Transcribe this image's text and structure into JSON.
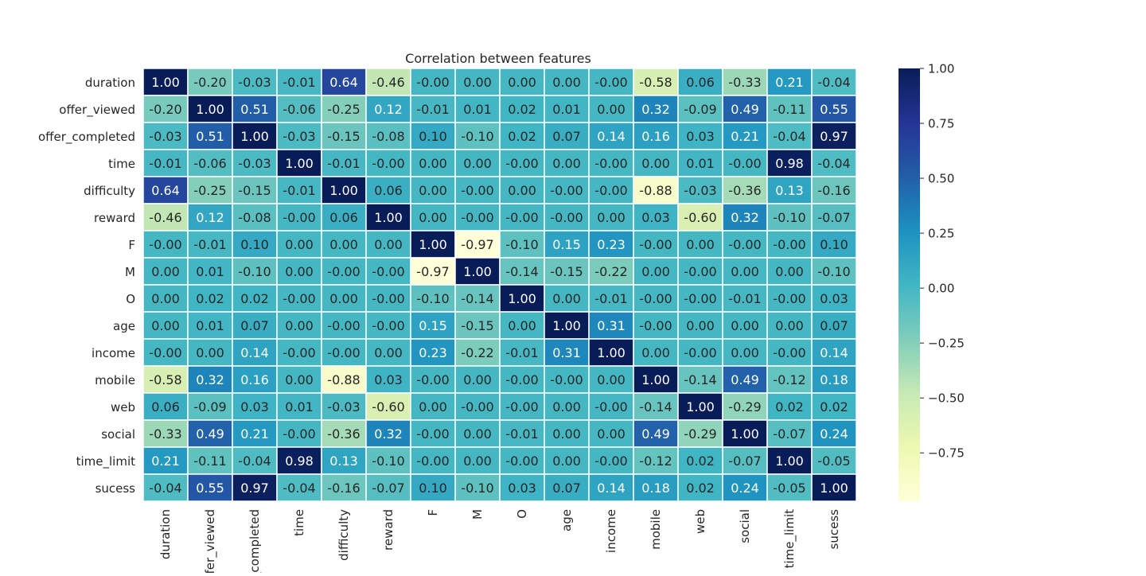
{
  "chart_data": {
    "type": "heatmap",
    "title": "Correlation between features",
    "row_labels": [
      "duration",
      "offer_viewed",
      "offer_completed",
      "time",
      "difficulty",
      "reward",
      "F",
      "M",
      "O",
      "age",
      "income",
      "mobile",
      "web",
      "social",
      "time_limit",
      "sucess"
    ],
    "col_labels": [
      "duration",
      "offer_viewed",
      "offer_completed",
      "time",
      "difficulty",
      "reward",
      "F",
      "M",
      "O",
      "age",
      "income",
      "mobile",
      "web",
      "social",
      "time_limit",
      "sucess"
    ],
    "col_labels_display": [
      "duration",
      "fer_viewed",
      "_completed",
      "time",
      "difficulty",
      "reward",
      "F",
      "M",
      "O",
      "age",
      "income",
      "mobile",
      "web",
      "social",
      "time_limit",
      "sucess"
    ],
    "values": [
      [
        "1.00",
        "-0.20",
        "-0.03",
        "-0.01",
        "0.64",
        "-0.46",
        "-0.00",
        "0.00",
        "0.00",
        "0.00",
        "-0.00",
        "-0.58",
        "0.06",
        "-0.33",
        "0.21",
        "-0.04"
      ],
      [
        "-0.20",
        "1.00",
        "0.51",
        "-0.06",
        "-0.25",
        "0.12",
        "-0.01",
        "0.01",
        "0.02",
        "0.01",
        "0.00",
        "0.32",
        "-0.09",
        "0.49",
        "-0.11",
        "0.55"
      ],
      [
        "-0.03",
        "0.51",
        "1.00",
        "-0.03",
        "-0.15",
        "-0.08",
        "0.10",
        "-0.10",
        "0.02",
        "0.07",
        "0.14",
        "0.16",
        "0.03",
        "0.21",
        "-0.04",
        "0.97"
      ],
      [
        "-0.01",
        "-0.06",
        "-0.03",
        "1.00",
        "-0.01",
        "-0.00",
        "0.00",
        "0.00",
        "-0.00",
        "0.00",
        "-0.00",
        "0.00",
        "0.01",
        "-0.00",
        "0.98",
        "-0.04"
      ],
      [
        "0.64",
        "-0.25",
        "-0.15",
        "-0.01",
        "1.00",
        "0.06",
        "0.00",
        "-0.00",
        "0.00",
        "-0.00",
        "-0.00",
        "-0.88",
        "-0.03",
        "-0.36",
        "0.13",
        "-0.16"
      ],
      [
        "-0.46",
        "0.12",
        "-0.08",
        "-0.00",
        "0.06",
        "1.00",
        "0.00",
        "-0.00",
        "-0.00",
        "-0.00",
        "0.00",
        "0.03",
        "-0.60",
        "0.32",
        "-0.10",
        "-0.07"
      ],
      [
        "-0.00",
        "-0.01",
        "0.10",
        "0.00",
        "0.00",
        "0.00",
        "1.00",
        "-0.97",
        "-0.10",
        "0.15",
        "0.23",
        "-0.00",
        "0.00",
        "-0.00",
        "-0.00",
        "0.10"
      ],
      [
        "0.00",
        "0.01",
        "-0.10",
        "0.00",
        "-0.00",
        "-0.00",
        "-0.97",
        "1.00",
        "-0.14",
        "-0.15",
        "-0.22",
        "0.00",
        "-0.00",
        "0.00",
        "0.00",
        "-0.10"
      ],
      [
        "0.00",
        "0.02",
        "0.02",
        "-0.00",
        "0.00",
        "-0.00",
        "-0.10",
        "-0.14",
        "1.00",
        "0.00",
        "-0.01",
        "-0.00",
        "-0.00",
        "-0.01",
        "-0.00",
        "0.03"
      ],
      [
        "0.00",
        "0.01",
        "0.07",
        "0.00",
        "-0.00",
        "-0.00",
        "0.15",
        "-0.15",
        "0.00",
        "1.00",
        "0.31",
        "-0.00",
        "0.00",
        "0.00",
        "0.00",
        "0.07"
      ],
      [
        "-0.00",
        "0.00",
        "0.14",
        "-0.00",
        "-0.00",
        "0.00",
        "0.23",
        "-0.22",
        "-0.01",
        "0.31",
        "1.00",
        "0.00",
        "-0.00",
        "0.00",
        "-0.00",
        "0.14"
      ],
      [
        "-0.58",
        "0.32",
        "0.16",
        "0.00",
        "-0.88",
        "0.03",
        "-0.00",
        "0.00",
        "-0.00",
        "-0.00",
        "0.00",
        "1.00",
        "-0.14",
        "0.49",
        "-0.12",
        "0.18"
      ],
      [
        "0.06",
        "-0.09",
        "0.03",
        "0.01",
        "-0.03",
        "-0.60",
        "0.00",
        "-0.00",
        "-0.00",
        "0.00",
        "-0.00",
        "-0.14",
        "1.00",
        "-0.29",
        "0.02",
        "0.02"
      ],
      [
        "-0.33",
        "0.49",
        "0.21",
        "-0.00",
        "-0.36",
        "0.32",
        "-0.00",
        "0.00",
        "-0.01",
        "0.00",
        "0.00",
        "0.49",
        "-0.29",
        "1.00",
        "-0.07",
        "0.24"
      ],
      [
        "0.21",
        "-0.11",
        "-0.04",
        "0.98",
        "0.13",
        "-0.10",
        "-0.00",
        "0.00",
        "-0.00",
        "0.00",
        "-0.00",
        "-0.12",
        "0.02",
        "-0.07",
        "1.00",
        "-0.05"
      ],
      [
        "-0.04",
        "0.55",
        "0.97",
        "-0.04",
        "-0.16",
        "-0.07",
        "0.10",
        "-0.10",
        "0.03",
        "0.07",
        "0.14",
        "0.18",
        "0.02",
        "0.24",
        "-0.05",
        "1.00"
      ]
    ],
    "colormap": "YlGnBu",
    "colormap_stops": [
      "#ffffd9",
      "#edf8b1",
      "#c7e9b4",
      "#7fcdbb",
      "#41b6c4",
      "#1d91c0",
      "#225ea8",
      "#253494",
      "#081d58"
    ],
    "vmin": -0.97,
    "vmax": 1.0,
    "colorbar_ticks": [
      "1.00",
      "0.75",
      "0.50",
      "0.25",
      "0.00",
      "−0.25",
      "−0.50",
      "−0.75"
    ],
    "colorbar_tick_values": [
      1.0,
      0.75,
      0.5,
      0.25,
      0.0,
      -0.25,
      -0.5,
      -0.75
    ],
    "grid_line_color": "#ffffff",
    "light_text_color": "#ffffff",
    "dark_text_color": "#262626"
  }
}
